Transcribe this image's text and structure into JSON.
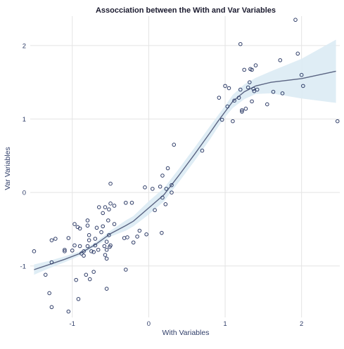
{
  "chart_data": {
    "type": "scatter",
    "title": "Assocciation between the With and Var Variables",
    "xlabel": "With Variables",
    "ylabel": "Var Variables",
    "xlim": [
      -1.55,
      2.5
    ],
    "ylim": [
      -1.7,
      2.4
    ],
    "x_ticks": [
      -1,
      0,
      1,
      2
    ],
    "y_ticks": [
      -1,
      0,
      1,
      2
    ],
    "grid": true,
    "colors": {
      "points": "#2f3d68",
      "smooth_line": "#5a6482",
      "confidence_band": "#dcebf4",
      "grid": "#e4e4e4",
      "text": "#2f3d68"
    },
    "series": [
      {
        "type": "scatter",
        "points": [
          [
            -1.5,
            -0.8
          ],
          [
            -1.35,
            -1.12
          ],
          [
            -1.3,
            -1.37
          ],
          [
            -1.27,
            -1.56
          ],
          [
            -1.27,
            -0.65
          ],
          [
            -1.27,
            -0.95
          ],
          [
            -1.22,
            -0.63
          ],
          [
            -1.1,
            -0.8
          ],
          [
            -1.1,
            -0.78
          ],
          [
            -1.05,
            -0.62
          ],
          [
            -1.05,
            -1.62
          ],
          [
            -1.0,
            -0.79
          ],
          [
            -0.97,
            -0.72
          ],
          [
            -0.97,
            -0.43
          ],
          [
            -0.95,
            -1.19
          ],
          [
            -0.93,
            -0.47
          ],
          [
            -0.92,
            -1.45
          ],
          [
            -0.9,
            -0.73
          ],
          [
            -0.9,
            -0.49
          ],
          [
            -0.88,
            -0.83
          ],
          [
            -0.85,
            -0.86
          ],
          [
            -0.85,
            -0.8
          ],
          [
            -0.82,
            -1.12
          ],
          [
            -0.8,
            -0.73
          ],
          [
            -0.8,
            -0.38
          ],
          [
            -0.8,
            -0.45
          ],
          [
            -0.78,
            -0.58
          ],
          [
            -0.78,
            -0.65
          ],
          [
            -0.77,
            -1.18
          ],
          [
            -0.75,
            -0.8
          ],
          [
            -0.72,
            -1.08
          ],
          [
            -0.72,
            -0.81
          ],
          [
            -0.7,
            -0.63
          ],
          [
            -0.7,
            -0.72
          ],
          [
            -0.68,
            -0.48
          ],
          [
            -0.66,
            -0.78
          ],
          [
            -0.65,
            -0.2
          ],
          [
            -0.62,
            -0.54
          ],
          [
            -0.6,
            -0.28
          ],
          [
            -0.6,
            -0.46
          ],
          [
            -0.58,
            -0.73
          ],
          [
            -0.57,
            -0.2
          ],
          [
            -0.57,
            -0.85
          ],
          [
            -0.55,
            -0.9
          ],
          [
            -0.55,
            -0.78
          ],
          [
            -0.55,
            -0.67
          ],
          [
            -0.55,
            -1.31
          ],
          [
            -0.53,
            -0.38
          ],
          [
            -0.52,
            -0.23
          ],
          [
            -0.52,
            -0.58
          ],
          [
            -0.51,
            -0.74
          ],
          [
            -0.5,
            -0.15
          ],
          [
            -0.5,
            0.12
          ],
          [
            -0.5,
            -0.72
          ],
          [
            -0.45,
            -0.18
          ],
          [
            -0.45,
            -0.43
          ],
          [
            -0.32,
            -0.62
          ],
          [
            -0.3,
            -1.05
          ],
          [
            -0.3,
            -0.14
          ],
          [
            -0.28,
            -0.61
          ],
          [
            -0.22,
            -0.14
          ],
          [
            -0.2,
            -0.68
          ],
          [
            -0.15,
            -0.6
          ],
          [
            -0.12,
            -0.52
          ],
          [
            -0.05,
            0.07
          ],
          [
            -0.03,
            -0.57
          ],
          [
            0.05,
            0.05
          ],
          [
            0.08,
            -0.24
          ],
          [
            0.15,
            0.08
          ],
          [
            0.17,
            -0.55
          ],
          [
            0.18,
            0.23
          ],
          [
            0.18,
            -0.07
          ],
          [
            0.22,
            -0.16
          ],
          [
            0.23,
            0.05
          ],
          [
            0.25,
            0.33
          ],
          [
            0.3,
            0.0
          ],
          [
            0.3,
            0.1
          ],
          [
            0.33,
            0.65
          ],
          [
            0.7,
            0.57
          ],
          [
            0.92,
            1.29
          ],
          [
            0.96,
            0.99
          ],
          [
            1.0,
            1.45
          ],
          [
            1.03,
            1.17
          ],
          [
            1.05,
            1.42
          ],
          [
            1.1,
            0.97
          ],
          [
            1.12,
            1.25
          ],
          [
            1.18,
            1.29
          ],
          [
            1.2,
            1.4
          ],
          [
            1.2,
            2.02
          ],
          [
            1.22,
            1.1
          ],
          [
            1.22,
            1.12
          ],
          [
            1.25,
            1.67
          ],
          [
            1.27,
            1.14
          ],
          [
            1.3,
            1.43
          ],
          [
            1.32,
            1.5
          ],
          [
            1.33,
            1.68
          ],
          [
            1.35,
            1.24
          ],
          [
            1.35,
            1.67
          ],
          [
            1.37,
            1.41
          ],
          [
            1.38,
            1.38
          ],
          [
            1.4,
            1.73
          ],
          [
            1.42,
            1.4
          ],
          [
            1.55,
            1.2
          ],
          [
            1.63,
            1.37
          ],
          [
            1.72,
            1.8
          ],
          [
            1.75,
            1.35
          ],
          [
            1.92,
            2.35
          ],
          [
            1.95,
            1.89
          ],
          [
            2.0,
            1.6
          ],
          [
            2.02,
            1.45
          ],
          [
            2.47,
            0.97
          ]
        ]
      },
      {
        "type": "smooth",
        "x": [
          -1.5,
          -1.3,
          -1.1,
          -0.9,
          -0.7,
          -0.5,
          -0.3,
          -0.2,
          0.0,
          0.2,
          0.4,
          0.6,
          0.8,
          0.9,
          1.0,
          1.1,
          1.25,
          1.4,
          1.6,
          2.0,
          2.45
        ],
        "y": [
          -1.05,
          -0.98,
          -0.91,
          -0.83,
          -0.71,
          -0.56,
          -0.45,
          -0.39,
          -0.21,
          -0.03,
          0.24,
          0.52,
          0.81,
          0.96,
          1.1,
          1.24,
          1.37,
          1.45,
          1.5,
          1.55,
          1.65
        ],
        "lower": [
          -1.12,
          -1.03,
          -0.95,
          -0.86,
          -0.74,
          -0.6,
          -0.52,
          -0.46,
          -0.3,
          -0.12,
          0.15,
          0.43,
          0.72,
          0.88,
          1.03,
          1.15,
          1.27,
          1.34,
          1.35,
          1.28,
          1.22
        ],
        "upper": [
          -0.98,
          -0.93,
          -0.87,
          -0.8,
          -0.68,
          -0.52,
          -0.38,
          -0.32,
          -0.12,
          0.06,
          0.33,
          0.61,
          0.9,
          1.04,
          1.18,
          1.33,
          1.47,
          1.56,
          1.65,
          1.82,
          2.08
        ]
      }
    ]
  }
}
